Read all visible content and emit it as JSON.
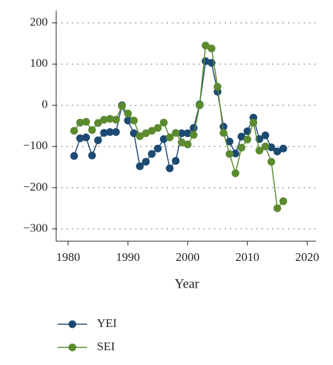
{
  "chart_data": {
    "type": "line",
    "x_label": "Year",
    "x": [
      1981,
      1982,
      1983,
      1984,
      1985,
      1986,
      1987,
      1988,
      1989,
      1990,
      1991,
      1992,
      1993,
      1994,
      1995,
      1996,
      1997,
      1998,
      1999,
      2000,
      2001,
      2002,
      2003,
      2004,
      2005,
      2006,
      2007,
      2008,
      2009,
      2010,
      2011,
      2012,
      2013,
      2014,
      2015,
      2016
    ],
    "series": [
      {
        "name": "YEI",
        "color": "#1d4a72",
        "values": [
          -123,
          -80,
          -78,
          -122,
          -85,
          -67,
          -65,
          -65,
          0,
          -37,
          -68,
          -148,
          -137,
          -118,
          -105,
          -82,
          -153,
          -135,
          -68,
          -68,
          -55,
          2,
          107,
          103,
          33,
          -52,
          -88,
          -117,
          -76,
          -63,
          -30,
          -82,
          -73,
          -102,
          -112,
          -105
        ]
      },
      {
        "name": "SEI",
        "color": "#5b8a2f",
        "values": [
          -62,
          -42,
          -40,
          -60,
          -43,
          -35,
          -33,
          -35,
          -2,
          -20,
          -37,
          -75,
          -68,
          -62,
          -55,
          -42,
          -78,
          -67,
          -90,
          -95,
          -72,
          0,
          145,
          138,
          45,
          -67,
          -118,
          -165,
          -103,
          -83,
          -42,
          -110,
          -100,
          -137,
          -250,
          -233
        ]
      }
    ],
    "xlim": [
      1978,
      2021.5
    ],
    "xticks": [
      1980,
      1990,
      2000,
      2010,
      2020
    ],
    "ylim": [
      -330,
      230
    ],
    "yticks": [
      {
        "value": -300,
        "label": "−300"
      },
      {
        "value": -200,
        "label": "−200"
      },
      {
        "value": -100,
        "label": "−100"
      },
      0,
      100,
      200
    ],
    "grid": true,
    "legend": "bottom"
  }
}
